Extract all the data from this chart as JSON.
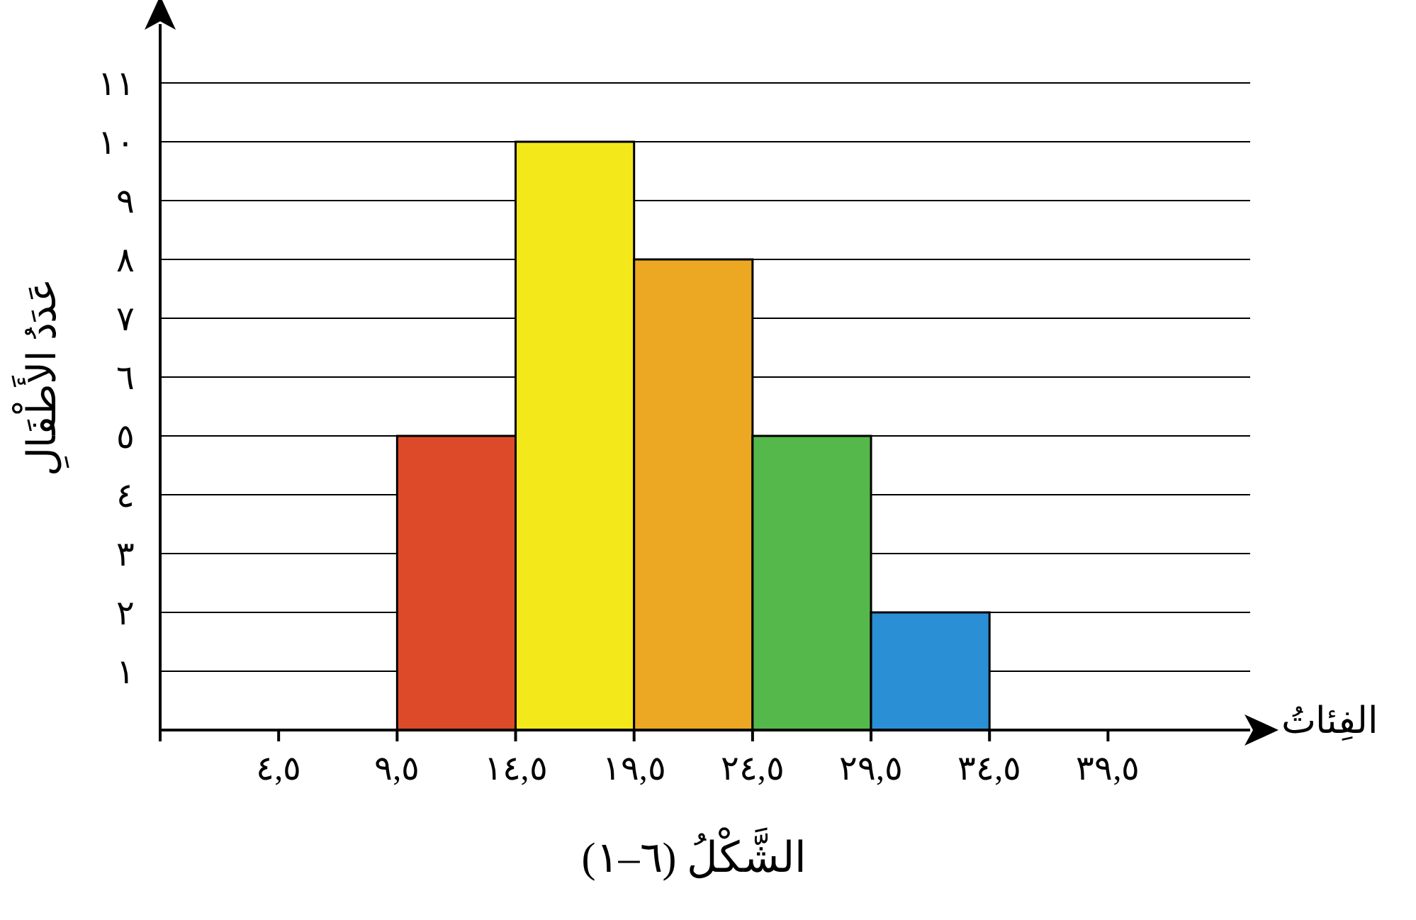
{
  "chart_data": {
    "type": "histogram",
    "title": "الشَّكْلُ (٦–١)",
    "xlabel": "الفِئاتُ",
    "ylabel": "عَدَدُ الأَطْفَالِ",
    "bins": [
      9.5,
      14.5,
      19.5,
      24.5,
      29.5,
      34.5
    ],
    "values": [
      5,
      10,
      8,
      5,
      2
    ],
    "colors": [
      "#dd4a2a",
      "#f3e81a",
      "#eca823",
      "#55b84a",
      "#2a8fd4"
    ],
    "xlim": [
      -0.5,
      45.5
    ],
    "xticks": [
      {
        "value": -0.5,
        "label": null
      },
      {
        "value": 4.5,
        "label": "٤,٥"
      },
      {
        "value": 9.5,
        "label": "٩,٥"
      },
      {
        "value": 14.5,
        "label": "١٤,٥"
      },
      {
        "value": 19.5,
        "label": "١٩,٥"
      },
      {
        "value": 24.5,
        "label": "٢٤,٥"
      },
      {
        "value": 29.5,
        "label": "٢٩,٥"
      },
      {
        "value": 34.5,
        "label": "٣٤,٥"
      },
      {
        "value": 39.5,
        "label": "٣٩,٥"
      }
    ],
    "ylim": [
      0,
      12
    ],
    "yticks": [
      {
        "value": 1,
        "label": "١"
      },
      {
        "value": 2,
        "label": "٢"
      },
      {
        "value": 3,
        "label": "٣"
      },
      {
        "value": 4,
        "label": "٤"
      },
      {
        "value": 5,
        "label": "٥"
      },
      {
        "value": 6,
        "label": "٦"
      },
      {
        "value": 7,
        "label": "٧"
      },
      {
        "value": 8,
        "label": "٨"
      },
      {
        "value": 9,
        "label": "٩"
      },
      {
        "value": 10,
        "label": "١٠"
      },
      {
        "value": 11,
        "label": "١١"
      }
    ],
    "grid": "y"
  }
}
